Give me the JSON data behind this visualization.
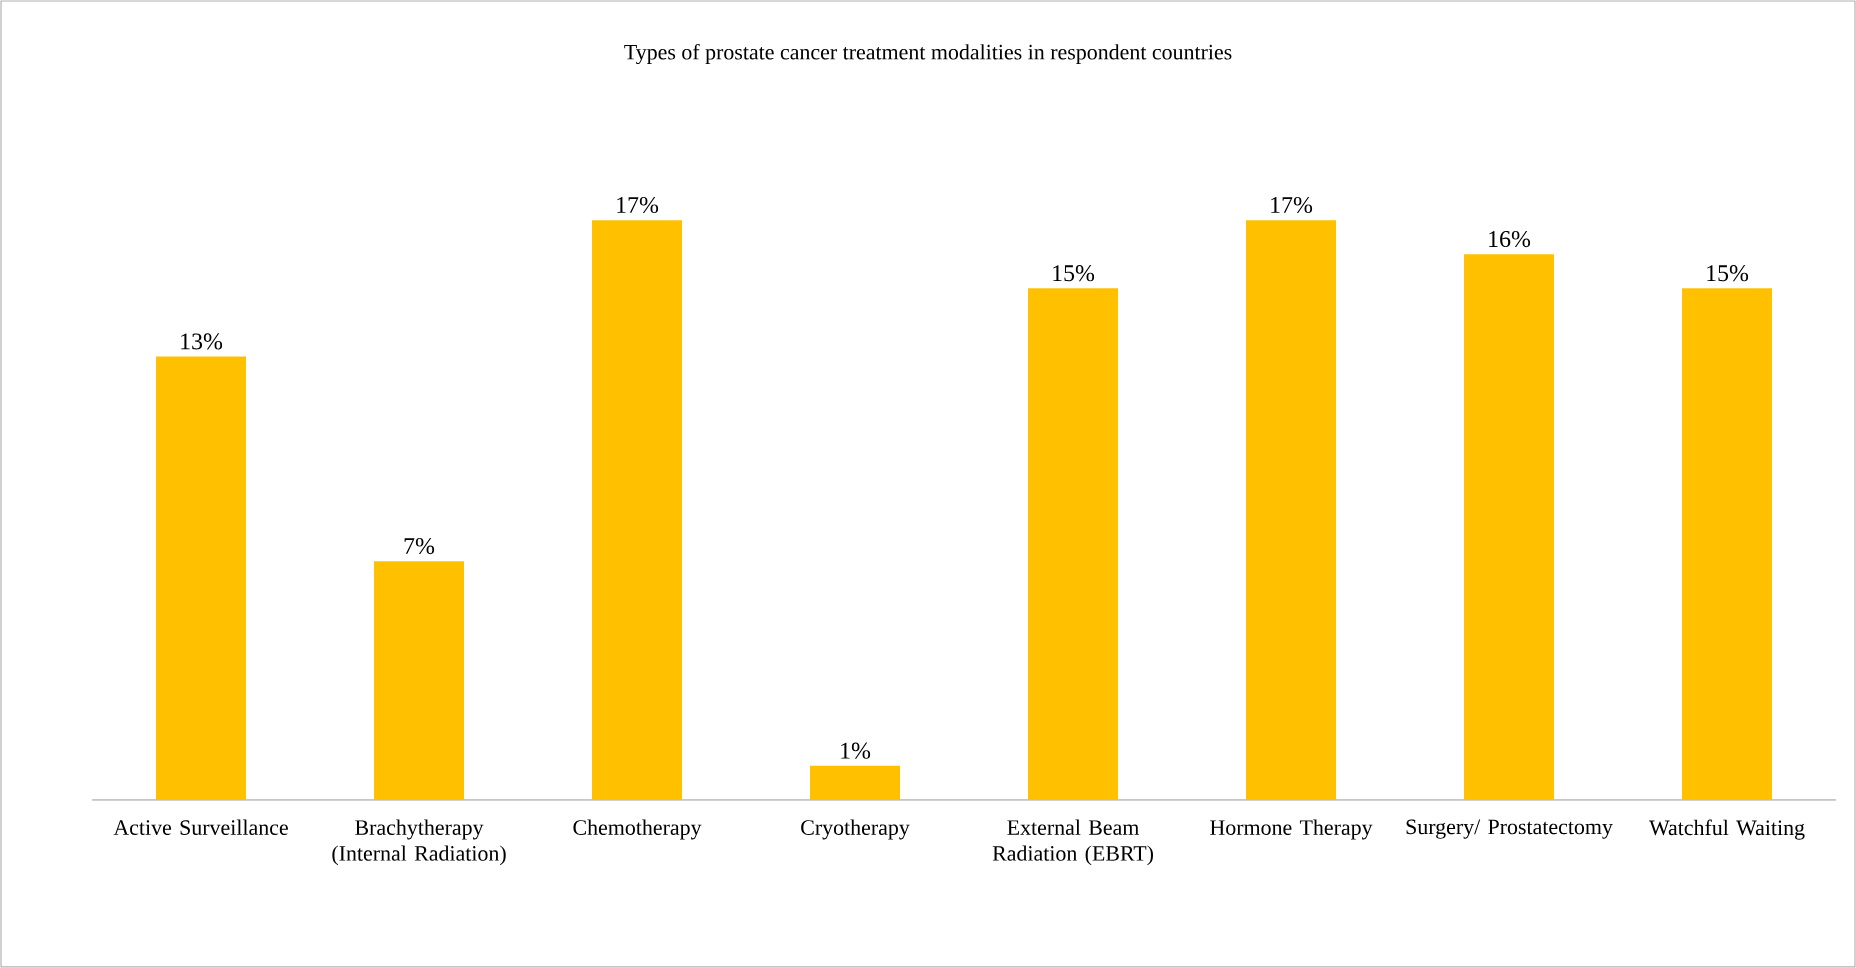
{
  "chart_data": {
    "type": "bar",
    "title": "Types of prostate cancer treatment modalities in respondent countries",
    "categories": [
      "Active Surveillance",
      "Brachytherapy (Internal Radiation)",
      "Chemotherapy",
      "Cryotherapy",
      "External Beam Radiation (EBRT)",
      "Hormone Therapy",
      "Surgery/ Prostatectomy",
      "Watchful Waiting"
    ],
    "values": [
      13,
      7,
      17,
      1,
      15,
      17,
      16,
      15
    ],
    "value_labels": [
      "13%",
      "7%",
      "17%",
      "1%",
      "15%",
      "17%",
      "16%",
      "15%"
    ],
    "color": "#ffc000"
  }
}
